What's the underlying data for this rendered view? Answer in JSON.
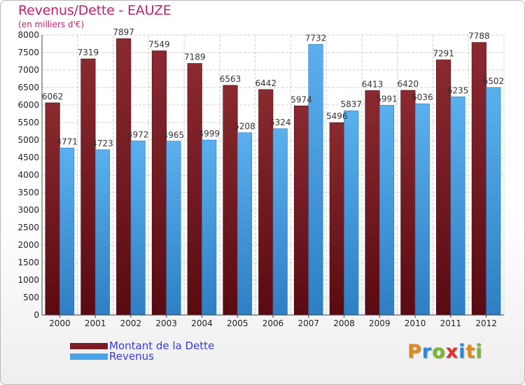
{
  "chart_data": {
    "type": "bar",
    "title": "Revenus/Dette - EAUZE",
    "subtitle": "(en milliers d'€)",
    "categories": [
      "2000",
      "2001",
      "2002",
      "2003",
      "2004",
      "2005",
      "2006",
      "2007",
      "2008",
      "2009",
      "2010",
      "2011",
      "2012"
    ],
    "series": [
      {
        "name": "Montant de la Dette",
        "color": "#7a1c24",
        "values": [
          6062,
          7319,
          7897,
          7549,
          7189,
          6563,
          6442,
          5974,
          5496,
          6413,
          6420,
          7291,
          7788
        ]
      },
      {
        "name": "Revenus",
        "color": "#4aa3e6",
        "values": [
          4771,
          4723,
          4972,
          4965,
          4999,
          5208,
          5324,
          7732,
          5837,
          5991,
          6036,
          6235,
          6502
        ]
      }
    ],
    "ylim": [
      0,
      8000
    ],
    "ytick_step": 500,
    "grid": true,
    "legend_position": "bottom-left"
  },
  "legend": {
    "items": [
      {
        "label": "Montant de la Dette",
        "color": "#7a1c24"
      },
      {
        "label": "Revenus",
        "color": "#4aa3e6"
      }
    ]
  },
  "logo": {
    "text": "Proxiti",
    "letters": [
      "P",
      "r",
      "o",
      "x",
      "i",
      "t",
      "i"
    ],
    "colors": [
      "#e08a1a",
      "#2a8ad8",
      "#7ab828",
      "#e03030",
      "#2a8ad8",
      "#e08a1a",
      "#7ab828"
    ]
  }
}
